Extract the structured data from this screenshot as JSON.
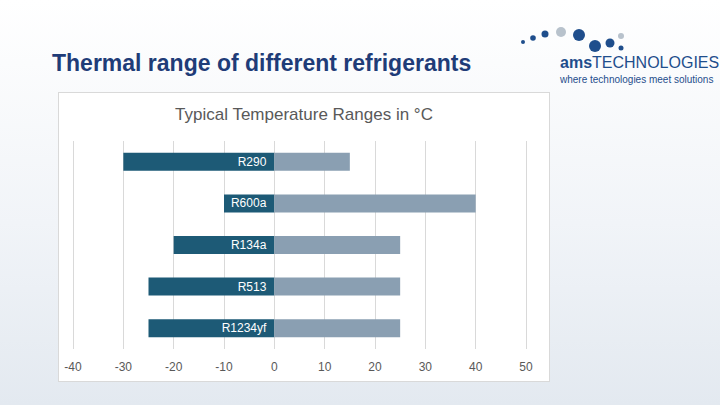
{
  "slide": {
    "title": "Thermal range of different refrigerants",
    "logo": {
      "brand": [
        "ams",
        "TECHNOLOGIES"
      ],
      "tagline": "where technologies meet solutions"
    }
  },
  "chart_data": {
    "type": "bar",
    "title": "Typical Temperature Ranges in °C",
    "orientation": "horizontal",
    "stacked": true,
    "categories": [
      "R290",
      "R600a",
      "R134a",
      "R513",
      "R1234yf"
    ],
    "series": [
      {
        "color": "#1d5a76",
        "values": [
          -30,
          -10,
          -20,
          -25,
          -25
        ]
      },
      {
        "color": "#8a9fb2",
        "values": [
          15,
          40,
          25,
          25,
          25
        ]
      }
    ],
    "xlim": [
      -40,
      50
    ],
    "xticks": [
      -40,
      -30,
      -20,
      -10,
      0,
      10,
      20,
      30,
      40,
      50
    ],
    "grid": true,
    "tick_labels": "x"
  }
}
